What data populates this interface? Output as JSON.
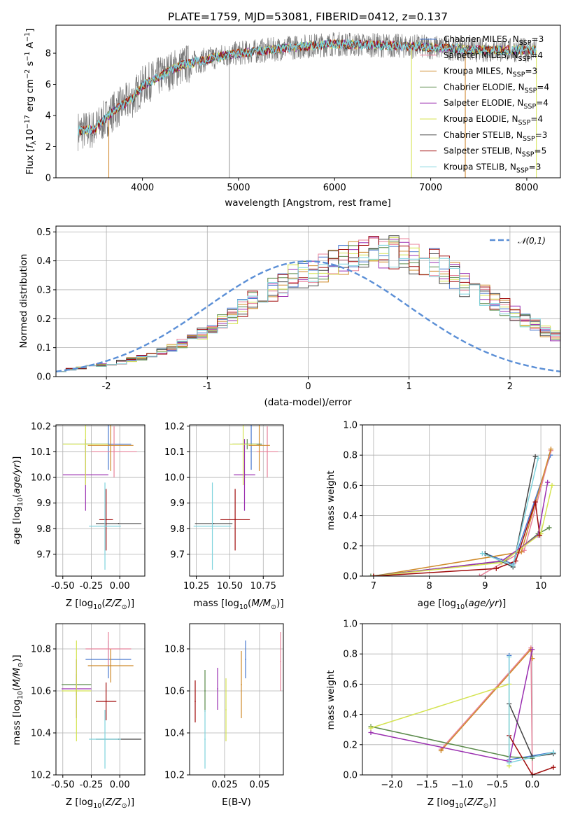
{
  "colors": {
    "Chabrier MILES": "#4878cf",
    "Salpeter MILES": "#e8829a",
    "Kroupa MILES": "#cf8a2a",
    "Chabrier ELODIE": "#5a8a4a",
    "Salpeter ELODIE": "#9a2fb0",
    "Kroupa ELODIE": "#d4e350",
    "Chabrier STELIB": "#444444",
    "Salpeter STELIB": "#a00b0b",
    "Kroupa STELIB": "#7fd3dd",
    "normal": "#5b8fd6"
  },
  "chart_data": [
    {
      "id": "spectrum",
      "type": "line",
      "title": "PLATE=1759, MJD=53081, FIBERID=0412, z=0.137",
      "xlabel": "wavelength [Angstrom, rest frame]",
      "ylabel": "Flux [f_λ 10^-17 erg cm^-2 s^-1 A^-1]",
      "xlim": [
        3100,
        8350
      ],
      "ylim": [
        0,
        9.8
      ],
      "xticks": [
        4000,
        5000,
        6000,
        7000,
        8000
      ],
      "yticks": [
        0,
        2,
        4,
        6,
        8
      ],
      "legend_position": "upper right",
      "series": [
        {
          "name": "Chabrier MILES, N_SSP=3"
        },
        {
          "name": "Salpeter MILES, N_SSP=4"
        },
        {
          "name": "Kroupa MILES, N_SSP=3"
        },
        {
          "name": "Chabrier ELODIE, N_SSP=4"
        },
        {
          "name": "Salpeter ELODIE, N_SSP=4"
        },
        {
          "name": "Kroupa ELODIE, N_SSP=4"
        },
        {
          "name": "Chabrier STELIB, N_SSP=3"
        },
        {
          "name": "Salpeter STELIB, N_SSP=5"
        },
        {
          "name": "Kroupa STELIB, N_SSP=3"
        }
      ],
      "continuum": {
        "x": [
          3300,
          3500,
          3700,
          3900,
          4000,
          4200,
          4400,
          4600,
          4800,
          5000,
          5300,
          5600,
          6000,
          6500,
          7000,
          7500,
          8100
        ],
        "y": [
          3.0,
          3.1,
          4.3,
          5.1,
          5.9,
          6.6,
          7.2,
          7.5,
          7.8,
          8.0,
          8.2,
          8.4,
          8.6,
          8.5,
          8.4,
          8.2,
          8.2
        ]
      },
      "dropouts": {
        "Salpeter MILES": [
          3650,
          7360
        ],
        "Kroupa MILES": [
          3650,
          7360
        ],
        "Kroupa ELODIE": [
          6800,
          8100
        ]
      }
    },
    {
      "id": "residual_hist",
      "type": "histogram",
      "xlabel": "(data-model)/error",
      "ylabel": "Normed distribution",
      "xlim": [
        -2.5,
        2.5
      ],
      "ylim": [
        0,
        0.52
      ],
      "xticks": [
        -2,
        -1,
        0,
        1,
        2
      ],
      "yticks": [
        0.0,
        0.1,
        0.2,
        0.3,
        0.4,
        0.5
      ],
      "legend": [
        {
          "name": "𝒩(0,1)"
        }
      ],
      "bin_width": 0.1,
      "bin_start": -2.5,
      "envelope": [
        0.02,
        0.025,
        0.03,
        0.035,
        0.04,
        0.045,
        0.05,
        0.06,
        0.065,
        0.075,
        0.085,
        0.1,
        0.115,
        0.13,
        0.15,
        0.17,
        0.19,
        0.21,
        0.235,
        0.26,
        0.28,
        0.3,
        0.32,
        0.34,
        0.35,
        0.36,
        0.38,
        0.39,
        0.4,
        0.41,
        0.42,
        0.43,
        0.43,
        0.43,
        0.42,
        0.41,
        0.4,
        0.39,
        0.37,
        0.35,
        0.32,
        0.3,
        0.28,
        0.26,
        0.24,
        0.22,
        0.2,
        0.18,
        0.16,
        0.14,
        0.12
      ]
    },
    {
      "id": "age_vs_Z",
      "type": "errorbar",
      "xlabel": "Z [log10(Z/Z⊙)]",
      "ylabel": "age [log10(age/yr)]",
      "xlim": [
        -0.56,
        0.22
      ],
      "ylim": [
        9.615,
        10.205
      ],
      "xticks": [
        -0.5,
        -0.25,
        0.0
      ],
      "yticks": [
        9.7,
        9.8,
        9.9,
        10.0,
        10.1,
        10.2
      ],
      "points": [
        {
          "s": "Chabrier MILES",
          "x": -0.1,
          "xe": 0.2,
          "y": 10.13,
          "ye": 0.1
        },
        {
          "s": "Salpeter MILES",
          "x": -0.05,
          "xe": 0.2,
          "y": 10.1,
          "ye": 0.1
        },
        {
          "s": "Kroupa MILES",
          "x": -0.08,
          "xe": 0.2,
          "y": 10.125,
          "ye": 0.1
        },
        {
          "s": "Chabrier ELODIE",
          "x": -0.3,
          "xe": 0.2,
          "y": 10.13,
          "ye": 0.02
        },
        {
          "s": "Salpeter ELODIE",
          "x": -0.3,
          "xe": 0.2,
          "y": 10.01,
          "ye": 0.14
        },
        {
          "s": "Kroupa ELODIE",
          "x": -0.3,
          "xe": 0.2,
          "y": 10.13,
          "ye": 0.16
        },
        {
          "s": "Chabrier STELIB",
          "x": -0.01,
          "xe": 0.2,
          "y": 9.82,
          "ye": 0.0
        },
        {
          "s": "Salpeter STELIB",
          "x": -0.12,
          "xe": 0.06,
          "y": 9.835,
          "ye": 0.12
        },
        {
          "s": "Kroupa STELIB",
          "x": -0.13,
          "xe": 0.14,
          "y": 9.81,
          "ye": 0.17
        }
      ]
    },
    {
      "id": "age_vs_mass",
      "type": "errorbar",
      "xlabel": "mass [log10(M/M⊙)]",
      "ylabel": "",
      "xlim": [
        10.2,
        10.9
      ],
      "ylim": [
        9.615,
        10.205
      ],
      "xticks": [
        10.25,
        10.5,
        10.75
      ],
      "yticks": [
        9.7,
        9.8,
        9.9,
        10.0,
        10.1,
        10.2
      ],
      "points": [
        {
          "s": "Chabrier MILES",
          "x": 10.66,
          "xe": 0.08,
          "y": 10.13,
          "ye": 0.1
        },
        {
          "s": "Salpeter MILES",
          "x": 10.78,
          "xe": 0.08,
          "y": 10.1,
          "ye": 0.1
        },
        {
          "s": "Kroupa MILES",
          "x": 10.72,
          "xe": 0.08,
          "y": 10.125,
          "ye": 0.1
        },
        {
          "s": "Chabrier ELODIE",
          "x": 10.63,
          "xe": 0.11,
          "y": 10.13,
          "ye": 0.02
        },
        {
          "s": "Salpeter ELODIE",
          "x": 10.61,
          "xe": 0.08,
          "y": 10.01,
          "ye": 0.14
        },
        {
          "s": "Kroupa ELODIE",
          "x": 10.6,
          "xe": 0.1,
          "y": 10.13,
          "ye": 0.16
        },
        {
          "s": "Chabrier STELIB",
          "x": 10.38,
          "xe": 0.14,
          "y": 9.82,
          "ye": 0.0
        },
        {
          "s": "Salpeter STELIB",
          "x": 10.54,
          "xe": 0.11,
          "y": 9.835,
          "ye": 0.12
        },
        {
          "s": "Kroupa STELIB",
          "x": 10.37,
          "xe": 0.14,
          "y": 9.81,
          "ye": 0.17
        }
      ]
    },
    {
      "id": "weight_vs_age",
      "type": "line",
      "xlabel": "age [log10(age/yr)]",
      "ylabel": "mass weight",
      "xlim": [
        6.8,
        10.35
      ],
      "ylim": [
        0,
        1.0
      ],
      "xticks": [
        7,
        8,
        9,
        10
      ],
      "yticks": [
        0.0,
        0.2,
        0.4,
        0.6,
        0.8,
        1.0
      ],
      "series": [
        {
          "s": "Chabrier MILES",
          "x": [
            9.0,
            9.5,
            10.17
          ],
          "y": [
            0.15,
            0.08,
            0.8
          ]
        },
        {
          "s": "Salpeter MILES",
          "x": [
            8.9,
            9.7,
            10.18
          ],
          "y": [
            0.0,
            0.17,
            0.83
          ]
        },
        {
          "s": "Kroupa MILES",
          "x": [
            7.0,
            9.65,
            10.18
          ],
          "y": [
            0.0,
            0.16,
            0.84
          ]
        },
        {
          "s": "Chabrier ELODIE",
          "x": [
            6.95,
            9.35,
            9.95,
            10.15
          ],
          "y": [
            0.0,
            0.1,
            0.28,
            0.32
          ]
        },
        {
          "s": "Salpeter ELODIE",
          "x": [
            7.0,
            9.3,
            9.95,
            10.12
          ],
          "y": [
            0.0,
            0.1,
            0.27,
            0.62
          ]
        },
        {
          "s": "Kroupa ELODIE",
          "x": [
            7.0,
            9.3,
            10.0,
            10.2
          ],
          "y": [
            0.0,
            0.09,
            0.28,
            0.6
          ]
        },
        {
          "s": "Chabrier STELIB",
          "x": [
            9.0,
            9.5,
            9.9
          ],
          "y": [
            0.15,
            0.06,
            0.79
          ]
        },
        {
          "s": "Salpeter STELIB",
          "x": [
            7.0,
            9.2,
            9.55,
            9.9,
            9.98
          ],
          "y": [
            0.0,
            0.05,
            0.1,
            0.49,
            0.27
          ]
        },
        {
          "s": "Kroupa STELIB",
          "x": [
            8.95,
            9.5,
            9.95
          ],
          "y": [
            0.15,
            0.07,
            0.78
          ]
        }
      ]
    },
    {
      "id": "mass_vs_Z",
      "type": "errorbar",
      "xlabel": "Z [log10(Z/Z⊙)]",
      "ylabel": "mass [log10(M/M⊙)]",
      "xlim": [
        -0.56,
        0.22
      ],
      "ylim": [
        10.2,
        10.92
      ],
      "xticks": [
        -0.5,
        -0.25,
        0.0
      ],
      "yticks": [
        10.2,
        10.4,
        10.6,
        10.8
      ],
      "points": [
        {
          "s": "Chabrier MILES",
          "x": -0.1,
          "xe": 0.2,
          "y": 10.75,
          "ye": 0.09
        },
        {
          "s": "Salpeter MILES",
          "x": -0.1,
          "xe": 0.2,
          "y": 10.8,
          "ye": 0.08
        },
        {
          "s": "Kroupa MILES",
          "x": -0.08,
          "xe": 0.2,
          "y": 10.72,
          "ye": 0.08
        },
        {
          "s": "Chabrier ELODIE",
          "x": -0.38,
          "xe": 0.13,
          "y": 10.63,
          "ye": 0.05
        },
        {
          "s": "Salpeter ELODIE",
          "x": -0.38,
          "xe": 0.13,
          "y": 10.61,
          "ye": 0.14
        },
        {
          "s": "Kroupa ELODIE",
          "x": -0.38,
          "xe": 0.13,
          "y": 10.6,
          "ye": 0.24
        },
        {
          "s": "Chabrier STELIB",
          "x": -0.01,
          "xe": 0.2,
          "y": 10.37,
          "ye": 0.0
        },
        {
          "s": "Salpeter STELIB",
          "x": -0.12,
          "xe": 0.09,
          "y": 10.55,
          "ye": 0.09
        },
        {
          "s": "Kroupa STELIB",
          "x": -0.13,
          "xe": 0.14,
          "y": 10.37,
          "ye": 0.14
        }
      ]
    },
    {
      "id": "mass_vs_ebv",
      "type": "errorbar",
      "xlabel": "E(B-V)",
      "ylabel": "",
      "xlim": [
        0.0,
        0.067
      ],
      "ylim": [
        10.2,
        10.92
      ],
      "xticks": [
        0.025,
        0.05
      ],
      "yticks": [
        10.2,
        10.4,
        10.6,
        10.8
      ],
      "points": [
        {
          "s": "Salpeter STELIB",
          "x": 0.004,
          "y": 10.55,
          "ye": 0.1
        },
        {
          "s": "Chabrier ELODIE",
          "x": 0.011,
          "y": 10.6,
          "ye": 0.1
        },
        {
          "s": "Kroupa STELIB",
          "x": 0.011,
          "y": 10.37,
          "ye": 0.14
        },
        {
          "s": "Salpeter ELODIE",
          "x": 0.02,
          "y": 10.61,
          "ye": 0.1
        },
        {
          "s": "Kroupa ELODIE",
          "x": 0.026,
          "y": 10.51,
          "ye": 0.15
        },
        {
          "s": "Kroupa MILES",
          "x": 0.037,
          "y": 10.63,
          "ye": 0.16
        },
        {
          "s": "Chabrier MILES",
          "x": 0.04,
          "y": 10.75,
          "ye": 0.09
        },
        {
          "s": "Salpeter MILES",
          "x": 0.065,
          "y": 10.74,
          "ye": 0.14
        }
      ]
    },
    {
      "id": "weight_vs_Z",
      "type": "line",
      "xlabel": "Z [log10(Z/Z⊙)]",
      "ylabel": "mass weight",
      "xlim": [
        -2.42,
        0.4
      ],
      "ylim": [
        0,
        1.0
      ],
      "xticks": [
        -2.0,
        -1.5,
        -1.0,
        -0.5,
        0.0
      ],
      "yticks": [
        0.0,
        0.2,
        0.4,
        0.6,
        0.8,
        1.0
      ],
      "series": [
        {
          "s": "Chabrier MILES",
          "x": [
            -0.33,
            -0.33,
            0.3
          ],
          "y": [
            0.79,
            0.1,
            0.15
          ]
        },
        {
          "s": "Salpeter MILES",
          "x": [
            -1.3,
            -0.02,
            0.0
          ],
          "y": [
            0.17,
            0.84,
            0.0
          ]
        },
        {
          "s": "Kroupa MILES",
          "x": [
            -1.3,
            -0.02,
            0.0
          ],
          "y": [
            0.16,
            0.83,
            0.77
          ]
        },
        {
          "s": "Chabrier ELODIE",
          "x": [
            -2.3,
            -0.33,
            0.0
          ],
          "y": [
            0.32,
            0.12,
            0.11
          ]
        },
        {
          "s": "Salpeter ELODIE",
          "x": [
            -2.3,
            -0.33,
            0.0
          ],
          "y": [
            0.28,
            0.09,
            0.83
          ]
        },
        {
          "s": "Kroupa ELODIE",
          "x": [
            -2.3,
            -0.33,
            -0.33
          ],
          "y": [
            0.31,
            0.6,
            0.06
          ]
        },
        {
          "s": "Chabrier STELIB",
          "x": [
            -0.33,
            0.0,
            0.3
          ],
          "y": [
            0.47,
            0.12,
            0.14
          ]
        },
        {
          "s": "Salpeter STELIB",
          "x": [
            -0.33,
            0.0,
            0.3
          ],
          "y": [
            0.26,
            0.0,
            0.05
          ]
        },
        {
          "s": "Kroupa STELIB",
          "x": [
            -0.33,
            -0.33,
            0.3
          ],
          "y": [
            0.78,
            0.08,
            0.15
          ]
        }
      ]
    }
  ]
}
